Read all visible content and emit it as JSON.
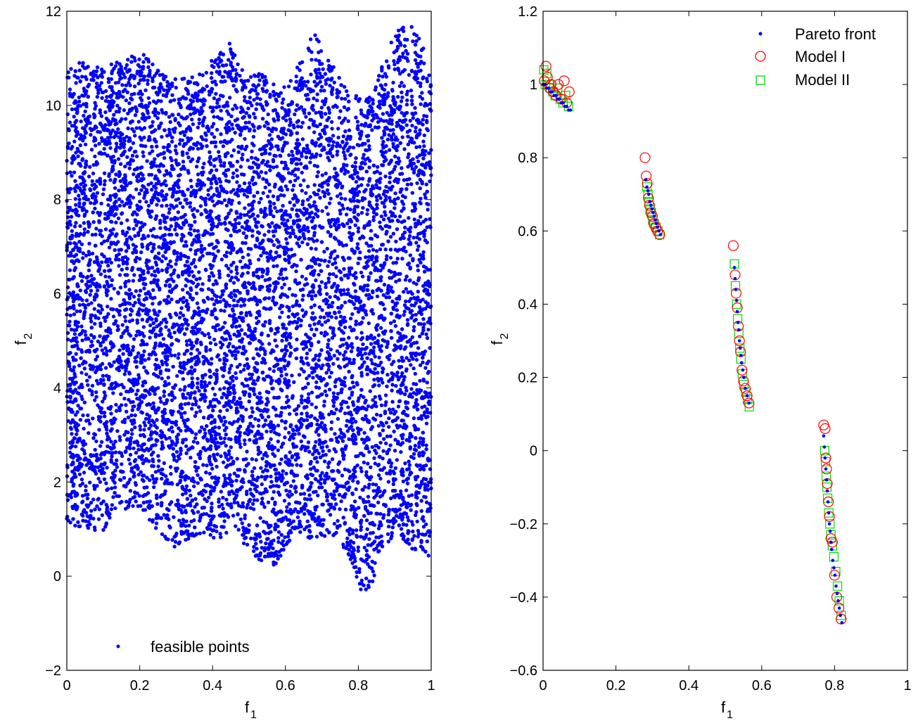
{
  "chart_data": [
    {
      "type": "scatter",
      "xlabel": "f",
      "xlabel_sub": "1",
      "ylabel": "f",
      "ylabel_sub": "2",
      "xlim": [
        0,
        1
      ],
      "ylim": [
        -2,
        12
      ],
      "xticks": [
        0,
        0.2,
        0.4,
        0.6,
        0.8,
        1
      ],
      "xtick_labels": [
        "0",
        "0.2",
        "0.4",
        "0.6",
        "0.8",
        "1"
      ],
      "yticks": [
        -2,
        0,
        2,
        4,
        6,
        8,
        10,
        12
      ],
      "ytick_labels": [
        "−2",
        "0",
        "2",
        "4",
        "6",
        "8",
        "10",
        "12"
      ],
      "grid": false,
      "legend_position": "bottom-left",
      "series": [
        {
          "name": "feasible points",
          "marker": "dot",
          "color": "#0000ff",
          "point_count": 9000,
          "lower_envelope": {
            "x": [
              0,
              0.02,
              0.05,
              0.1,
              0.13,
              0.18,
              0.22,
              0.26,
              0.3,
              0.33,
              0.36,
              0.39,
              0.42,
              0.45,
              0.48,
              0.51,
              0.54,
              0.57,
              0.6,
              0.63,
              0.66,
              0.69,
              0.72,
              0.75,
              0.78,
              0.8,
              0.82,
              0.84,
              0.87,
              0.9,
              0.93,
              0.95,
              0.97,
              0.99,
              1
            ],
            "y": [
              1.0,
              1.05,
              1.0,
              0.95,
              1.4,
              1.4,
              1.25,
              0.85,
              0.6,
              0.75,
              0.9,
              0.85,
              0.7,
              1.0,
              0.75,
              0.4,
              0.25,
              0.15,
              0.6,
              1.0,
              0.8,
              0.6,
              0.9,
              0.8,
              0.2,
              -0.3,
              -0.35,
              -0.1,
              0.55,
              0.8,
              0.7,
              0.5,
              0.6,
              0.4,
              0.35
            ]
          },
          "upper_envelope": {
            "x": [
              0,
              0.03,
              0.06,
              0.1,
              0.14,
              0.18,
              0.22,
              0.26,
              0.3,
              0.34,
              0.38,
              0.42,
              0.45,
              0.49,
              0.53,
              0.57,
              0.6,
              0.63,
              0.66,
              0.69,
              0.72,
              0.75,
              0.78,
              0.81,
              0.84,
              0.88,
              0.91,
              0.94,
              0.97,
              1
            ],
            "y": [
              10.85,
              10.9,
              10.95,
              10.9,
              10.95,
              11.05,
              11.1,
              10.7,
              10.55,
              10.6,
              10.7,
              11.3,
              11.35,
              10.6,
              10.7,
              10.5,
              10.4,
              10.8,
              11.35,
              11.55,
              11.0,
              10.55,
              10.3,
              10.15,
              10.3,
              11.2,
              11.65,
              11.8,
              11.5,
              10.5
            ]
          }
        }
      ]
    },
    {
      "type": "scatter",
      "xlabel": "f",
      "xlabel_sub": "1",
      "ylabel": "f",
      "ylabel_sub": "2",
      "xlim": [
        0,
        1
      ],
      "ylim": [
        -0.6,
        1.2
      ],
      "xticks": [
        0,
        0.2,
        0.4,
        0.6,
        0.8,
        1
      ],
      "xtick_labels": [
        "0",
        "0.2",
        "0.4",
        "0.6",
        "0.8",
        "1"
      ],
      "yticks": [
        -0.6,
        -0.4,
        -0.2,
        0,
        0.2,
        0.4,
        0.6,
        0.8,
        1,
        1.2
      ],
      "ytick_labels": [
        "−0.6",
        "−0.4",
        "−0.2",
        "0",
        "0.2",
        "0.4",
        "0.6",
        "0.8",
        "1",
        "1.2"
      ],
      "grid": false,
      "legend_position": "top-right",
      "series": [
        {
          "name": "Pareto front",
          "marker": "dot",
          "color": "#0000ff",
          "x": [
            0.0,
            0.005,
            0.01,
            0.015,
            0.02,
            0.025,
            0.03,
            0.035,
            0.04,
            0.045,
            0.05,
            0.055,
            0.06,
            0.065,
            0.07,
            0.075,
            0.282,
            0.285,
            0.288,
            0.29,
            0.293,
            0.296,
            0.299,
            0.302,
            0.305,
            0.308,
            0.311,
            0.314,
            0.318,
            0.322,
            0.525,
            0.527,
            0.529,
            0.531,
            0.533,
            0.535,
            0.537,
            0.539,
            0.541,
            0.543,
            0.545,
            0.548,
            0.551,
            0.555,
            0.56,
            0.565,
            0.77,
            0.772,
            0.774,
            0.776,
            0.778,
            0.78,
            0.782,
            0.784,
            0.786,
            0.788,
            0.79,
            0.792,
            0.795,
            0.798,
            0.801,
            0.804,
            0.807,
            0.81,
            0.813,
            0.816,
            0.82
          ],
          "y": [
            1.0,
            1.0,
            0.99,
            0.99,
            0.98,
            0.98,
            0.97,
            0.97,
            0.96,
            0.96,
            0.95,
            0.95,
            0.94,
            0.94,
            0.93,
            0.93,
            0.74,
            0.72,
            0.71,
            0.7,
            0.68,
            0.67,
            0.66,
            0.65,
            0.64,
            0.63,
            0.62,
            0.61,
            0.6,
            0.59,
            0.5,
            0.47,
            0.44,
            0.41,
            0.38,
            0.35,
            0.33,
            0.3,
            0.28,
            0.26,
            0.24,
            0.22,
            0.2,
            0.17,
            0.15,
            0.13,
            0.04,
            0.01,
            -0.02,
            -0.05,
            -0.08,
            -0.11,
            -0.14,
            -0.17,
            -0.2,
            -0.22,
            -0.25,
            -0.27,
            -0.3,
            -0.32,
            -0.34,
            -0.37,
            -0.39,
            -0.41,
            -0.43,
            -0.45,
            -0.47
          ]
        },
        {
          "name": "Model I",
          "marker": "circle",
          "color": "#ff0000",
          "x": [
            0.003,
            0.008,
            0.012,
            0.018,
            0.022,
            0.028,
            0.035,
            0.042,
            0.05,
            0.058,
            0.065,
            0.072,
            0.28,
            0.283,
            0.286,
            0.289,
            0.292,
            0.296,
            0.3,
            0.304,
            0.309,
            0.314,
            0.32,
            0.522,
            0.527,
            0.53,
            0.533,
            0.536,
            0.539,
            0.542,
            0.546,
            0.55,
            0.555,
            0.56,
            0.565,
            0.77,
            0.774,
            0.776,
            0.778,
            0.78,
            0.783,
            0.786,
            0.79,
            0.794,
            0.8,
            0.806,
            0.812,
            0.818
          ],
          "y": [
            1.01,
            1.05,
            1.02,
            0.99,
            1.0,
            0.98,
            0.97,
            1.0,
            0.96,
            1.01,
            0.95,
            0.98,
            0.8,
            0.75,
            0.73,
            0.69,
            0.67,
            0.65,
            0.64,
            0.62,
            0.61,
            0.6,
            0.59,
            0.56,
            0.48,
            0.43,
            0.39,
            0.34,
            0.3,
            0.27,
            0.22,
            0.19,
            0.17,
            0.15,
            0.13,
            0.07,
            0.06,
            -0.02,
            -0.05,
            -0.09,
            -0.14,
            -0.18,
            -0.24,
            -0.25,
            -0.34,
            -0.4,
            -0.43,
            -0.46
          ]
        },
        {
          "name": "Model II",
          "marker": "square",
          "color": "#00dd00",
          "x": [
            0.002,
            0.006,
            0.01,
            0.016,
            0.021,
            0.027,
            0.033,
            0.04,
            0.047,
            0.055,
            0.062,
            0.07,
            0.285,
            0.288,
            0.291,
            0.294,
            0.297,
            0.301,
            0.305,
            0.31,
            0.315,
            0.32,
            0.525,
            0.528,
            0.531,
            0.534,
            0.537,
            0.54,
            0.543,
            0.547,
            0.551,
            0.556,
            0.561,
            0.566,
            0.773,
            0.775,
            0.777,
            0.779,
            0.781,
            0.784,
            0.787,
            0.79,
            0.794,
            0.798,
            0.803,
            0.808,
            0.813,
            0.818
          ],
          "y": [
            1.04,
            1.0,
            1.03,
            1.0,
            0.99,
            0.98,
            0.97,
            0.99,
            0.96,
            0.95,
            0.97,
            0.94,
            0.72,
            0.7,
            0.68,
            0.66,
            0.65,
            0.63,
            0.62,
            0.61,
            0.6,
            0.59,
            0.51,
            0.45,
            0.4,
            0.36,
            0.32,
            0.28,
            0.25,
            0.21,
            0.18,
            0.16,
            0.14,
            0.12,
            0.0,
            -0.03,
            -0.07,
            -0.1,
            -0.13,
            -0.17,
            -0.2,
            -0.23,
            -0.26,
            -0.29,
            -0.33,
            -0.37,
            -0.41,
            -0.45
          ]
        }
      ]
    }
  ]
}
